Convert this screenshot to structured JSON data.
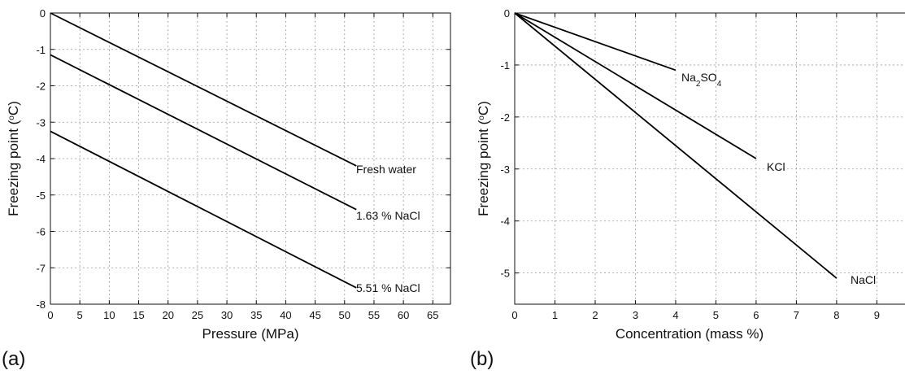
{
  "panels": [
    {
      "label": "(a)"
    },
    {
      "label": "(b)"
    }
  ],
  "chart_data": [
    {
      "type": "line",
      "title": "",
      "xlabel": "Pressure (MPa)",
      "ylabel_parts": [
        "Freezing point (",
        "o",
        "C)"
      ],
      "xlim": [
        0,
        68
      ],
      "ylim": [
        -8,
        0
      ],
      "xticks": [
        0,
        5,
        10,
        15,
        20,
        25,
        30,
        35,
        40,
        45,
        50,
        55,
        60,
        65
      ],
      "yticks": [
        0,
        -1,
        -2,
        -3,
        -4,
        -5,
        -6,
        -7,
        -8
      ],
      "grid": true,
      "series": [
        {
          "name": "Fresh water",
          "x": [
            0,
            52
          ],
          "y": [
            0,
            -4.2
          ]
        },
        {
          "name": "1.63 % NaCl",
          "x": [
            0,
            52
          ],
          "y": [
            -1.15,
            -5.4
          ]
        },
        {
          "name": "5.51 % NaCl",
          "x": [
            0,
            52
          ],
          "y": [
            -3.25,
            -7.55
          ]
        }
      ]
    },
    {
      "type": "line",
      "title": "",
      "xlabel": "Concentration (mass %)",
      "ylabel_parts": [
        "Freezing point (",
        "o",
        "C)"
      ],
      "xlim": [
        0,
        9.7
      ],
      "ylim": [
        -5.6,
        0
      ],
      "xticks": [
        0,
        1,
        2,
        3,
        4,
        5,
        6,
        7,
        8,
        9
      ],
      "yticks": [
        0,
        -1,
        -2,
        -3,
        -4,
        -5
      ],
      "grid": true,
      "series": [
        {
          "name_parts": [
            "Na",
            "2",
            "SO",
            "4"
          ],
          "x": [
            0,
            4
          ],
          "y": [
            0,
            -1.1
          ]
        },
        {
          "name": "KCl",
          "x": [
            0,
            6
          ],
          "y": [
            0,
            -2.8
          ]
        },
        {
          "name": "NaCl",
          "x": [
            0,
            8
          ],
          "y": [
            0,
            -5.1
          ]
        }
      ]
    }
  ]
}
